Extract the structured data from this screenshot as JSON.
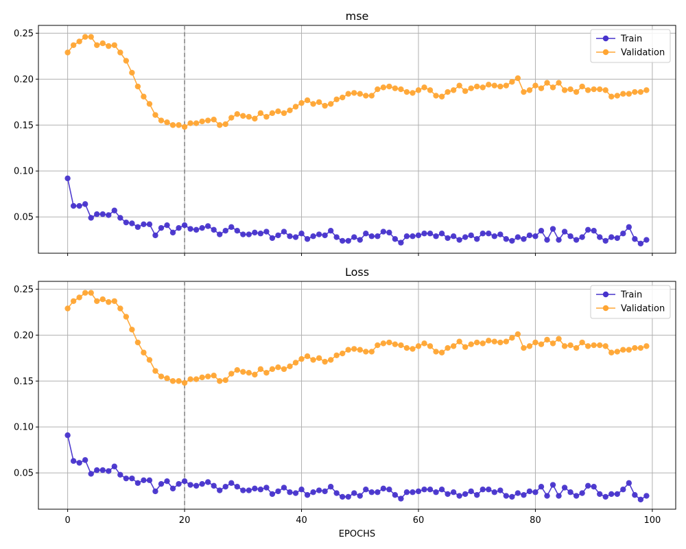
{
  "colors": {
    "train": "#4733CC",
    "validation": "#FFA533",
    "grid": "#B0B0B0",
    "vline": "#808080"
  },
  "chart_data": [
    {
      "type": "line",
      "title": "mse",
      "xlabel": "",
      "ylabel": "",
      "xlim": [
        -5,
        104
      ],
      "ylim": [
        0.0105,
        0.2585
      ],
      "xticks": [
        0,
        20,
        40,
        60,
        80,
        100
      ],
      "xtick_labels_visible": false,
      "yticks": [
        0.05,
        0.1,
        0.15,
        0.2,
        0.25
      ],
      "ytick_labels": [
        "0.05",
        "0.10",
        "0.15",
        "0.20",
        "0.25"
      ],
      "grid": true,
      "legend": "top-right",
      "vline_x": 20,
      "series": [
        {
          "name": "Train",
          "color_key": "train",
          "values": [
            0.092,
            0.062,
            0.062,
            0.064,
            0.049,
            0.053,
            0.053,
            0.052,
            0.057,
            0.049,
            0.044,
            0.043,
            0.039,
            0.042,
            0.042,
            0.03,
            0.038,
            0.041,
            0.033,
            0.038,
            0.041,
            0.037,
            0.036,
            0.038,
            0.04,
            0.036,
            0.031,
            0.035,
            0.039,
            0.035,
            0.031,
            0.031,
            0.033,
            0.032,
            0.034,
            0.027,
            0.03,
            0.034,
            0.029,
            0.028,
            0.032,
            0.026,
            0.029,
            0.031,
            0.03,
            0.035,
            0.028,
            0.024,
            0.024,
            0.028,
            0.025,
            0.032,
            0.029,
            0.029,
            0.034,
            0.033,
            0.026,
            0.022,
            0.029,
            0.029,
            0.03,
            0.032,
            0.032,
            0.029,
            0.032,
            0.027,
            0.029,
            0.025,
            0.028,
            0.03,
            0.026,
            0.032,
            0.032,
            0.029,
            0.031,
            0.026,
            0.024,
            0.028,
            0.026,
            0.03,
            0.029,
            0.035,
            0.025,
            0.037,
            0.025,
            0.034,
            0.029,
            0.025,
            0.028,
            0.036,
            0.035,
            0.028,
            0.024,
            0.028,
            0.027,
            0.032,
            0.039,
            0.026,
            0.021,
            0.025
          ]
        },
        {
          "name": "Validation",
          "color_key": "validation",
          "values": [
            0.229,
            0.237,
            0.241,
            0.246,
            0.246,
            0.237,
            0.239,
            0.236,
            0.237,
            0.229,
            0.22,
            0.207,
            0.192,
            0.181,
            0.173,
            0.161,
            0.155,
            0.153,
            0.15,
            0.15,
            0.148,
            0.152,
            0.152,
            0.154,
            0.155,
            0.156,
            0.15,
            0.151,
            0.158,
            0.162,
            0.16,
            0.159,
            0.157,
            0.163,
            0.159,
            0.163,
            0.165,
            0.163,
            0.166,
            0.17,
            0.174,
            0.177,
            0.173,
            0.175,
            0.171,
            0.173,
            0.178,
            0.18,
            0.184,
            0.185,
            0.184,
            0.182,
            0.182,
            0.189,
            0.191,
            0.192,
            0.19,
            0.189,
            0.186,
            0.185,
            0.188,
            0.191,
            0.188,
            0.182,
            0.181,
            0.186,
            0.188,
            0.193,
            0.187,
            0.19,
            0.192,
            0.191,
            0.194,
            0.193,
            0.192,
            0.193,
            0.197,
            0.201,
            0.186,
            0.188,
            0.193,
            0.19,
            0.196,
            0.191,
            0.196,
            0.188,
            0.189,
            0.186,
            0.192,
            0.188,
            0.189,
            0.189,
            0.188,
            0.181,
            0.182,
            0.184,
            0.184,
            0.186,
            0.186,
            0.188
          ]
        }
      ]
    },
    {
      "type": "line",
      "title": "Loss",
      "xlabel": "EPOCHS",
      "ylabel": "",
      "xlim": [
        -5,
        104
      ],
      "ylim": [
        0.0105,
        0.2585
      ],
      "xticks": [
        0,
        20,
        40,
        60,
        80,
        100
      ],
      "xtick_labels": [
        "0",
        "20",
        "40",
        "60",
        "80",
        "100"
      ],
      "xtick_labels_visible": true,
      "yticks": [
        0.05,
        0.1,
        0.15,
        0.2,
        0.25
      ],
      "ytick_labels": [
        "0.05",
        "0.10",
        "0.15",
        "0.20",
        "0.25"
      ],
      "grid": true,
      "legend": "top-right",
      "vline_x": 20,
      "series": [
        {
          "name": "Train",
          "color_key": "train",
          "values": [
            0.091,
            0.063,
            0.061,
            0.064,
            0.049,
            0.053,
            0.053,
            0.052,
            0.057,
            0.048,
            0.044,
            0.044,
            0.039,
            0.042,
            0.042,
            0.03,
            0.038,
            0.041,
            0.033,
            0.038,
            0.041,
            0.037,
            0.036,
            0.038,
            0.04,
            0.036,
            0.031,
            0.035,
            0.039,
            0.035,
            0.031,
            0.031,
            0.033,
            0.032,
            0.034,
            0.027,
            0.03,
            0.034,
            0.029,
            0.028,
            0.032,
            0.026,
            0.029,
            0.031,
            0.03,
            0.035,
            0.028,
            0.024,
            0.024,
            0.028,
            0.025,
            0.032,
            0.029,
            0.029,
            0.033,
            0.032,
            0.026,
            0.022,
            0.029,
            0.029,
            0.03,
            0.032,
            0.032,
            0.029,
            0.032,
            0.027,
            0.029,
            0.025,
            0.027,
            0.03,
            0.026,
            0.032,
            0.032,
            0.029,
            0.031,
            0.025,
            0.024,
            0.028,
            0.026,
            0.03,
            0.029,
            0.035,
            0.025,
            0.037,
            0.025,
            0.034,
            0.029,
            0.025,
            0.028,
            0.036,
            0.035,
            0.027,
            0.024,
            0.027,
            0.027,
            0.032,
            0.039,
            0.026,
            0.021,
            0.025
          ]
        },
        {
          "name": "Validation",
          "color_key": "validation",
          "values": [
            0.229,
            0.237,
            0.241,
            0.246,
            0.246,
            0.237,
            0.239,
            0.236,
            0.237,
            0.229,
            0.22,
            0.206,
            0.192,
            0.181,
            0.173,
            0.161,
            0.155,
            0.153,
            0.15,
            0.15,
            0.148,
            0.152,
            0.152,
            0.154,
            0.155,
            0.156,
            0.15,
            0.151,
            0.158,
            0.162,
            0.16,
            0.159,
            0.157,
            0.163,
            0.159,
            0.163,
            0.165,
            0.163,
            0.166,
            0.17,
            0.174,
            0.177,
            0.173,
            0.175,
            0.171,
            0.173,
            0.178,
            0.18,
            0.184,
            0.185,
            0.184,
            0.182,
            0.182,
            0.189,
            0.191,
            0.192,
            0.19,
            0.189,
            0.186,
            0.185,
            0.188,
            0.191,
            0.188,
            0.182,
            0.181,
            0.186,
            0.188,
            0.193,
            0.187,
            0.19,
            0.192,
            0.191,
            0.194,
            0.193,
            0.192,
            0.193,
            0.197,
            0.201,
            0.186,
            0.188,
            0.192,
            0.19,
            0.195,
            0.191,
            0.196,
            0.188,
            0.189,
            0.186,
            0.192,
            0.188,
            0.189,
            0.189,
            0.188,
            0.181,
            0.182,
            0.184,
            0.184,
            0.186,
            0.186,
            0.188
          ]
        }
      ]
    }
  ]
}
